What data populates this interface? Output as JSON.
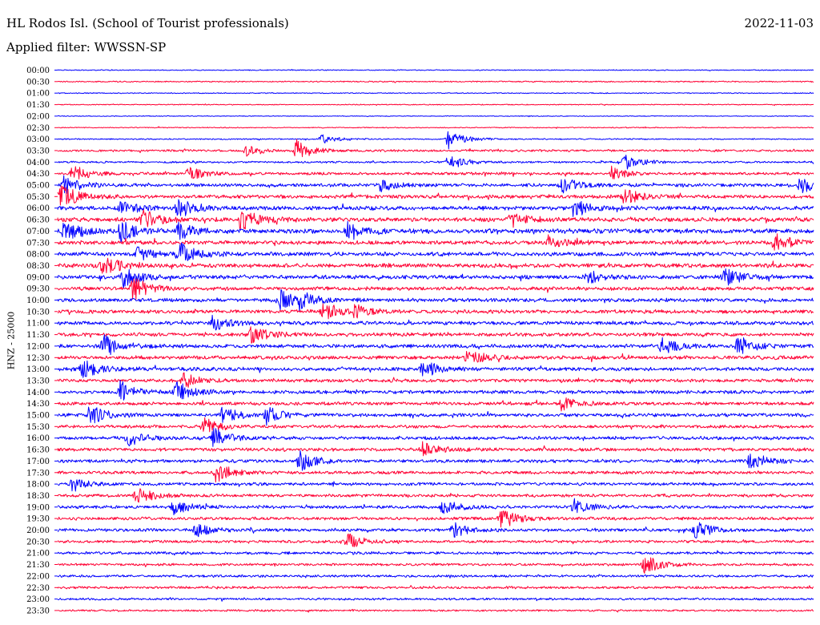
{
  "header": {
    "station": "HL Rodos Isl. (School of Tourist professionals)",
    "date": "2022-11-03",
    "filter": "Applied filter: WWSSN-SP"
  },
  "axis": {
    "channel_label": "HNZ - 25000"
  },
  "chart_data": {
    "type": "line",
    "description_kind": "helicorder",
    "row_labels": [
      "00:00",
      "00:30",
      "01:00",
      "01:30",
      "02:00",
      "02:30",
      "03:00",
      "03:30",
      "04:00",
      "04:30",
      "05:00",
      "05:30",
      "06:00",
      "06:30",
      "07:00",
      "07:30",
      "08:00",
      "08:30",
      "09:00",
      "09:30",
      "10:00",
      "10:30",
      "11:00",
      "11:30",
      "12:00",
      "12:30",
      "13:00",
      "13:30",
      "14:00",
      "14:30",
      "15:00",
      "15:30",
      "16:00",
      "16:30",
      "17:00",
      "17:30",
      "18:00",
      "18:30",
      "19:00",
      "19:30",
      "20:00",
      "20:30",
      "21:00",
      "21:30",
      "22:00",
      "22:30",
      "23:00",
      "23:30"
    ],
    "row_colors": [
      "#0000ff",
      "#ff0033"
    ],
    "row_minutes": 30,
    "noise_level": [
      0.15,
      0.2,
      0.15,
      0.15,
      0.12,
      0.15,
      0.2,
      0.35,
      0.3,
      0.45,
      0.55,
      0.6,
      0.65,
      0.7,
      0.75,
      0.65,
      0.65,
      0.7,
      0.65,
      0.6,
      0.6,
      0.6,
      0.6,
      0.6,
      0.6,
      0.6,
      0.6,
      0.55,
      0.55,
      0.55,
      0.55,
      0.5,
      0.55,
      0.55,
      0.55,
      0.5,
      0.5,
      0.5,
      0.5,
      0.5,
      0.5,
      0.45,
      0.45,
      0.4,
      0.4,
      0.4,
      0.35,
      0.3
    ],
    "events": [
      {
        "row": 6,
        "minute": 15.5,
        "amp": 1.1
      },
      {
        "row": 6,
        "minute": 10.5,
        "amp": 0.5
      },
      {
        "row": 7,
        "minute": 9.5,
        "amp": 1.2
      },
      {
        "row": 7,
        "minute": 7.5,
        "amp": 0.6
      },
      {
        "row": 8,
        "minute": 15.5,
        "amp": 0.9
      },
      {
        "row": 8,
        "minute": 22.5,
        "amp": 0.9
      },
      {
        "row": 9,
        "minute": 0.6,
        "amp": 1.0
      },
      {
        "row": 9,
        "minute": 5.2,
        "amp": 0.8
      },
      {
        "row": 9,
        "minute": 22.0,
        "amp": 0.8
      },
      {
        "row": 10,
        "minute": 0.2,
        "amp": 1.2
      },
      {
        "row": 10,
        "minute": 12.8,
        "amp": 0.8
      },
      {
        "row": 10,
        "minute": 20.0,
        "amp": 1.0
      },
      {
        "row": 10,
        "minute": 29.5,
        "amp": 1.0
      },
      {
        "row": 11,
        "minute": 0.1,
        "amp": 1.6
      },
      {
        "row": 11,
        "minute": 22.5,
        "amp": 1.0
      },
      {
        "row": 12,
        "minute": 2.5,
        "amp": 1.0
      },
      {
        "row": 12,
        "minute": 4.8,
        "amp": 1.2
      },
      {
        "row": 12,
        "minute": 20.5,
        "amp": 1.0
      },
      {
        "row": 13,
        "minute": 3.4,
        "amp": 1.2
      },
      {
        "row": 13,
        "minute": 7.3,
        "amp": 1.3
      },
      {
        "row": 13,
        "minute": 18.0,
        "amp": 0.8
      },
      {
        "row": 14,
        "minute": 0.3,
        "amp": 1.3
      },
      {
        "row": 14,
        "minute": 2.5,
        "amp": 1.2
      },
      {
        "row": 14,
        "minute": 4.8,
        "amp": 1.0
      },
      {
        "row": 14,
        "minute": 11.5,
        "amp": 1.0
      },
      {
        "row": 15,
        "minute": 19.5,
        "amp": 0.9
      },
      {
        "row": 15,
        "minute": 28.5,
        "amp": 1.0
      },
      {
        "row": 16,
        "minute": 4.8,
        "amp": 1.3
      },
      {
        "row": 16,
        "minute": 3.2,
        "amp": 0.8
      },
      {
        "row": 17,
        "minute": 1.8,
        "amp": 1.2
      },
      {
        "row": 18,
        "minute": 2.6,
        "amp": 1.2
      },
      {
        "row": 18,
        "minute": 21.0,
        "amp": 0.8
      },
      {
        "row": 18,
        "minute": 26.5,
        "amp": 1.0
      },
      {
        "row": 19,
        "minute": 3.0,
        "amp": 1.3
      },
      {
        "row": 20,
        "minute": 8.8,
        "amp": 1.2
      },
      {
        "row": 20,
        "minute": 9.6,
        "amp": 0.9
      },
      {
        "row": 21,
        "minute": 10.5,
        "amp": 1.0
      },
      {
        "row": 21,
        "minute": 11.8,
        "amp": 0.7
      },
      {
        "row": 22,
        "minute": 6.2,
        "amp": 0.9
      },
      {
        "row": 23,
        "minute": 7.7,
        "amp": 1.1
      },
      {
        "row": 24,
        "minute": 1.8,
        "amp": 1.3
      },
      {
        "row": 24,
        "minute": 24.0,
        "amp": 1.1
      },
      {
        "row": 24,
        "minute": 27.0,
        "amp": 1.0
      },
      {
        "row": 25,
        "minute": 16.3,
        "amp": 1.0
      },
      {
        "row": 26,
        "minute": 1.0,
        "amp": 1.1
      },
      {
        "row": 26,
        "minute": 14.5,
        "amp": 1.0
      },
      {
        "row": 27,
        "minute": 5.0,
        "amp": 0.9
      },
      {
        "row": 28,
        "minute": 2.5,
        "amp": 1.3
      },
      {
        "row": 28,
        "minute": 4.7,
        "amp": 1.2
      },
      {
        "row": 29,
        "minute": 20.0,
        "amp": 0.8
      },
      {
        "row": 30,
        "minute": 1.3,
        "amp": 1.3
      },
      {
        "row": 30,
        "minute": 6.5,
        "amp": 1.0
      },
      {
        "row": 30,
        "minute": 8.3,
        "amp": 1.0
      },
      {
        "row": 31,
        "minute": 5.8,
        "amp": 1.0
      },
      {
        "row": 32,
        "minute": 2.8,
        "amp": 0.9
      },
      {
        "row": 32,
        "minute": 6.2,
        "amp": 1.1
      },
      {
        "row": 33,
        "minute": 14.5,
        "amp": 0.8
      },
      {
        "row": 34,
        "minute": 9.6,
        "amp": 1.1
      },
      {
        "row": 34,
        "minute": 27.5,
        "amp": 1.0
      },
      {
        "row": 35,
        "minute": 6.3,
        "amp": 1.2
      },
      {
        "row": 36,
        "minute": 0.6,
        "amp": 0.8
      },
      {
        "row": 37,
        "minute": 3.1,
        "amp": 1.0
      },
      {
        "row": 38,
        "minute": 4.6,
        "amp": 0.9
      },
      {
        "row": 38,
        "minute": 15.3,
        "amp": 0.8
      },
      {
        "row": 38,
        "minute": 20.5,
        "amp": 0.9
      },
      {
        "row": 39,
        "minute": 17.6,
        "amp": 1.2
      },
      {
        "row": 40,
        "minute": 5.5,
        "amp": 0.8
      },
      {
        "row": 40,
        "minute": 25.3,
        "amp": 1.0
      },
      {
        "row": 40,
        "minute": 15.7,
        "amp": 0.8
      },
      {
        "row": 41,
        "minute": 11.5,
        "amp": 0.9
      },
      {
        "row": 43,
        "minute": 23.3,
        "amp": 1.1
      }
    ]
  }
}
